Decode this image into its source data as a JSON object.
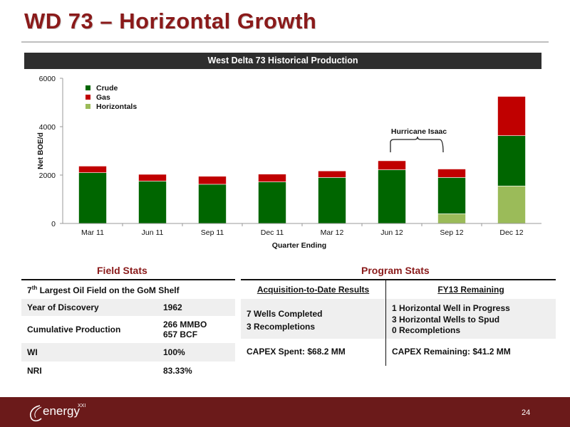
{
  "slide": {
    "title": "WD 73 – Horizontal Growth",
    "page_number": "24"
  },
  "chart_data": {
    "type": "bar",
    "stacked": true,
    "title": "West Delta 73 Historical Production",
    "xlabel": "Quarter Ending",
    "ylabel": "Net BOE/d",
    "ylim": [
      0,
      6000
    ],
    "yticks": [
      "0",
      "2000",
      "4000",
      "6000"
    ],
    "categories": [
      "Mar 11",
      "Jun 11",
      "Sep 11",
      "Dec 11",
      "Mar 12",
      "Jun 12",
      "Sep 12",
      "Dec 12"
    ],
    "series": [
      {
        "name": "Horizontals",
        "color": "#9bbb59",
        "values": [
          0,
          0,
          0,
          0,
          0,
          0,
          400,
          1550
        ]
      },
      {
        "name": "Crude",
        "color": "#006600",
        "values": [
          2100,
          1750,
          1620,
          1720,
          1900,
          2220,
          1500,
          2080
        ]
      },
      {
        "name": "Gas",
        "color": "#c00000",
        "values": [
          270,
          280,
          330,
          320,
          270,
          370,
          350,
          1620
        ]
      }
    ],
    "legend_order": [
      "Crude",
      "Gas",
      "Horizontals"
    ],
    "legend_position": "top-left",
    "annotations": [
      {
        "text": "Hurricane Isaac",
        "categories": [
          "Jun 12",
          "Sep 12"
        ]
      }
    ]
  },
  "field_stats": {
    "title": "Field Stats",
    "heading_pre": "7",
    "heading_sup": "th",
    "heading_post": " Largest Oil Field on the GoM Shelf",
    "rows": [
      {
        "label": "Year of Discovery",
        "value": "1962"
      },
      {
        "label": "Cumulative Production",
        "value": "266 MMBO",
        "value2": "657 BCF"
      },
      {
        "label": "WI",
        "value": "100%"
      },
      {
        "label": "NRI",
        "value": "83.33%"
      }
    ]
  },
  "program_stats": {
    "title": "Program Stats",
    "col1_header": "Acquisition-to-Date Results",
    "col2_header": "FY13 Remaining",
    "col1_line1": "7 Wells Completed",
    "col1_line2": "3 Recompletions",
    "col2_line1": "1 Horizontal Well in Progress",
    "col2_line2": "3 Horizontal Wells to Spud",
    "col2_line3": "0 Recompletions",
    "capex_spent": "CAPEX Spent: $68.2 MM",
    "capex_remaining": "CAPEX Remaining: $41.2 MM"
  },
  "footer": {
    "logo_text": "energy",
    "logo_sup": "XXI",
    "logo_icon": "swoosh-logo"
  }
}
